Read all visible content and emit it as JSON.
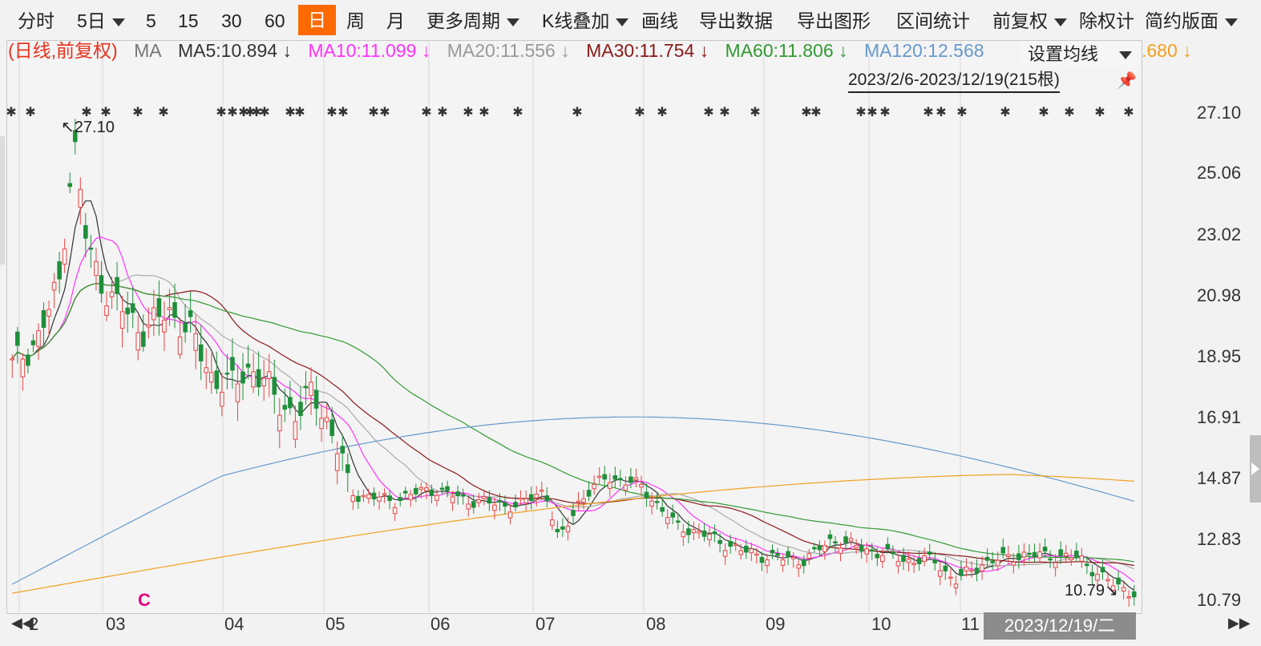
{
  "toolbar": {
    "items": [
      "分时",
      "5日",
      "5",
      "15",
      "30",
      "60",
      "日",
      "周",
      "月",
      "更多周期",
      "K线叠加",
      "画线",
      "导出数据",
      "导出图形",
      "区间统计",
      "前复权",
      "除权计",
      "简约版面"
    ],
    "active": "日"
  },
  "ma_legend": {
    "mode": "(日线,前复权)",
    "ma": "MA",
    "ma5": "MA5:10.894 ↓",
    "ma10": "MA10:11.099 ↓",
    "ma20": "MA20:11.556 ↓",
    "ma30": "MA30:11.754 ↓",
    "ma60": "MA60:11.806 ↓",
    "ma120": "MA120:12.568",
    "ma250_tail": ".680 ↓",
    "colors": {
      "mode": "#e6331e",
      "ma5": "#333333",
      "ma10": "#ff33ff",
      "ma20": "#999999",
      "ma30": "#8b1a1a",
      "ma60": "#339933",
      "ma120": "#6699cc",
      "ma250": "#f0a020"
    }
  },
  "popup": {
    "label": "设置均线"
  },
  "range": {
    "text": "2023/2/6-2023/12/19(215根)"
  },
  "price_axis": [
    "27.10",
    "25.06",
    "23.02",
    "20.98",
    "18.95",
    "16.91",
    "14.87",
    "12.83",
    "10.79"
  ],
  "x_axis": [
    "2",
    "03",
    "04",
    "05",
    "06",
    "07",
    "08",
    "09",
    "10",
    "11"
  ],
  "cursor_date": "2023/12/19/二",
  "annotations": {
    "high": "27.10",
    "low": "10.79",
    "marker": "C"
  },
  "colors": {
    "up": "#e64545",
    "down": "#1f8f3a",
    "grid": "#d0d0d0"
  }
}
